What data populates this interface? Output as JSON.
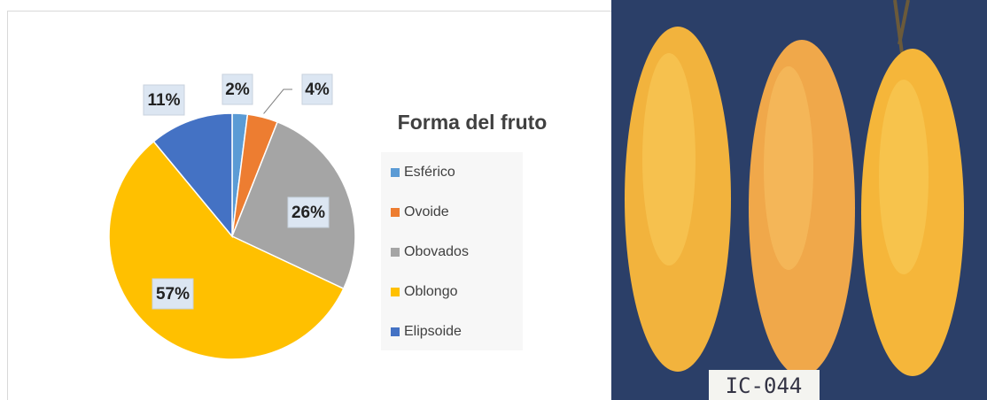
{
  "chart_data": {
    "type": "pie",
    "title": "Forma del fruto",
    "categories": [
      "Esférico",
      "Ovoide",
      "Obovados",
      "Oblongo",
      "Elipsoide"
    ],
    "values": [
      2,
      4,
      26,
      57,
      11
    ],
    "value_labels": [
      "2%",
      "4%",
      "26%",
      "57%",
      "11%"
    ],
    "colors": [
      "#5b9bd5",
      "#ed7d31",
      "#a5a5a5",
      "#ffc000",
      "#4472c4"
    ],
    "legend": "right"
  },
  "photo": {
    "label": "IC-044"
  }
}
